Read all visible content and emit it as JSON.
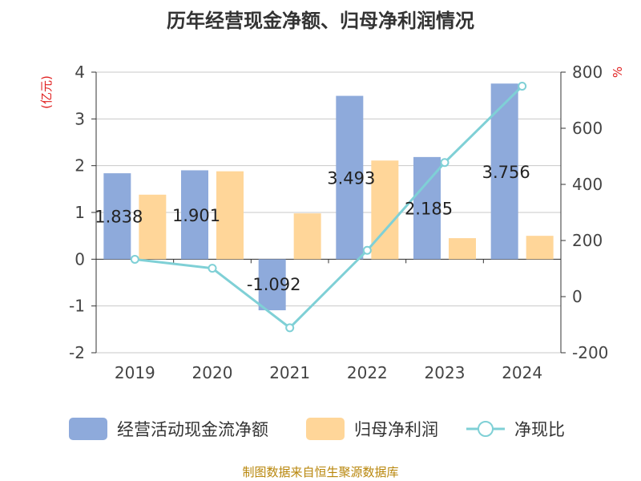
{
  "chart_data": {
    "type": "bar",
    "title": "历年经营现金净额、归母净利润情况",
    "categories": [
      "2019",
      "2020",
      "2021",
      "2022",
      "2023",
      "2024"
    ],
    "series": [
      {
        "name": "经营活动现金流净额",
        "axis": "left",
        "kind": "bar",
        "color": "#8eaadb",
        "values": [
          1.838,
          1.901,
          -1.092,
          3.493,
          2.185,
          3.756
        ],
        "labels": [
          "1.838",
          "1.901",
          "-1.092",
          "3.493",
          "2.185",
          "3.756"
        ]
      },
      {
        "name": "归母净利润",
        "axis": "left",
        "kind": "bar",
        "color": "#ffd699",
        "values": [
          1.38,
          1.88,
          0.98,
          2.11,
          0.45,
          0.5
        ]
      },
      {
        "name": "净现比",
        "axis": "right",
        "kind": "line",
        "color": "#7fd0d6",
        "values": [
          133,
          101,
          -111,
          165,
          478,
          750
        ]
      }
    ],
    "left_axis": {
      "unit": "(亿元)",
      "ylim": [
        -2,
        4
      ],
      "ticks": [
        -2,
        -1,
        0,
        1,
        2,
        3,
        4
      ]
    },
    "right_axis": {
      "unit": "%",
      "ylim": [
        -200,
        800
      ],
      "ticks": [
        -200,
        0,
        200,
        400,
        600,
        800
      ]
    },
    "legend_position": "bottom",
    "grid": true
  },
  "source": "制图数据来自恒生聚源数据库"
}
